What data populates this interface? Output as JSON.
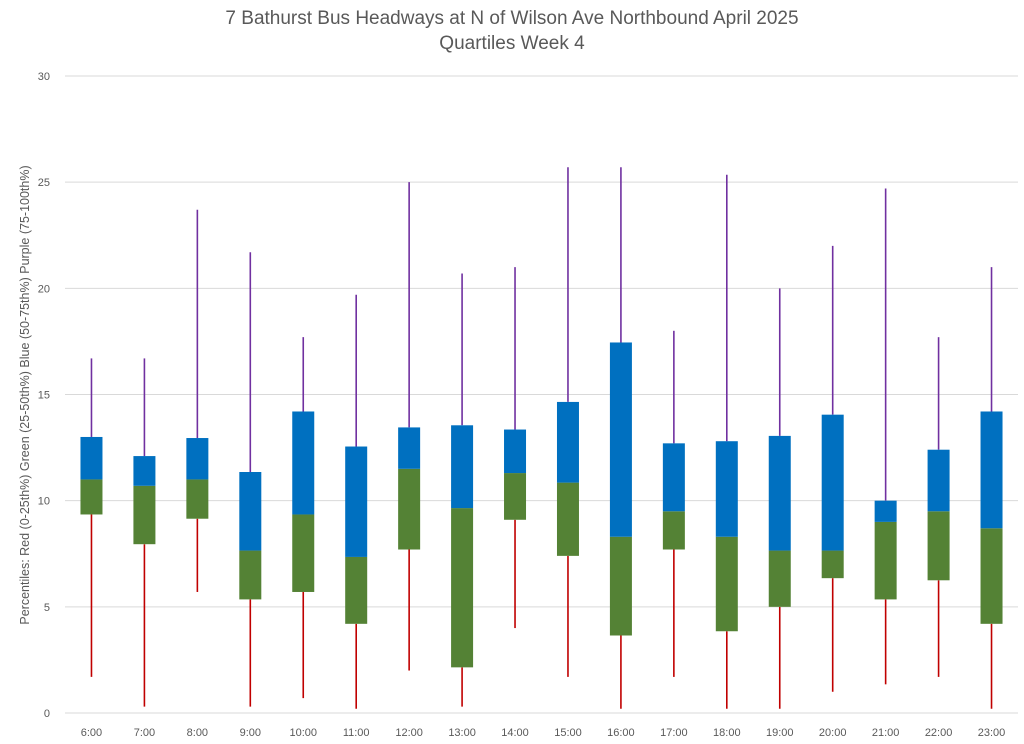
{
  "chart_data": {
    "type": "boxplot",
    "title": "7 Bathurst Bus Headways at N of Wilson Ave Northbound April 2025",
    "subtitle": "Quartiles Week 4",
    "xlabel": "",
    "ylabel": "Percentiles:  Red (0-25th%)  Green (25-50th%)  Blue (50-75th%)  Purple (75-100th%)",
    "ylim": [
      0,
      30
    ],
    "yticks": [
      0,
      5,
      10,
      15,
      20,
      25,
      30
    ],
    "grid": true,
    "colors": {
      "min_whisker": "#c00000",
      "q1_to_median": "#548235",
      "median_to_q3": "#0070c0",
      "max_whisker": "#7030a0",
      "grid": "#d9d9d9"
    },
    "categories": [
      "6:00",
      "7:00",
      "8:00",
      "9:00",
      "10:00",
      "11:00",
      "12:00",
      "13:00",
      "14:00",
      "15:00",
      "16:00",
      "17:00",
      "18:00",
      "19:00",
      "20:00",
      "21:00",
      "22:00",
      "23:00"
    ],
    "series": [
      {
        "name": "min",
        "values": [
          1.7,
          0.3,
          5.7,
          0.3,
          0.7,
          0.2,
          2.0,
          0.3,
          4.0,
          1.7,
          0.2,
          1.7,
          0.2,
          0.2,
          1.0,
          1.35,
          1.7,
          0.2
        ]
      },
      {
        "name": "q1",
        "values": [
          9.35,
          7.95,
          9.15,
          5.35,
          5.7,
          4.2,
          7.7,
          2.15,
          9.1,
          7.4,
          3.65,
          7.7,
          3.85,
          5.0,
          6.35,
          5.35,
          6.25,
          4.2
        ]
      },
      {
        "name": "median",
        "values": [
          11.0,
          10.7,
          11.0,
          7.65,
          9.35,
          7.35,
          11.5,
          9.65,
          11.3,
          10.85,
          8.3,
          9.5,
          8.3,
          7.65,
          7.65,
          9.0,
          9.5,
          8.7
        ]
      },
      {
        "name": "q3",
        "values": [
          13.0,
          12.1,
          12.95,
          11.35,
          14.2,
          12.55,
          13.45,
          13.55,
          13.35,
          14.65,
          17.45,
          12.7,
          12.8,
          13.05,
          14.05,
          10.0,
          12.4,
          14.2
        ]
      },
      {
        "name": "max",
        "values": [
          16.7,
          16.7,
          23.7,
          21.7,
          17.7,
          19.7,
          25.0,
          20.7,
          21.0,
          25.7,
          25.7,
          18.0,
          25.35,
          20.0,
          22.0,
          24.7,
          17.7,
          21.0
        ]
      }
    ]
  }
}
